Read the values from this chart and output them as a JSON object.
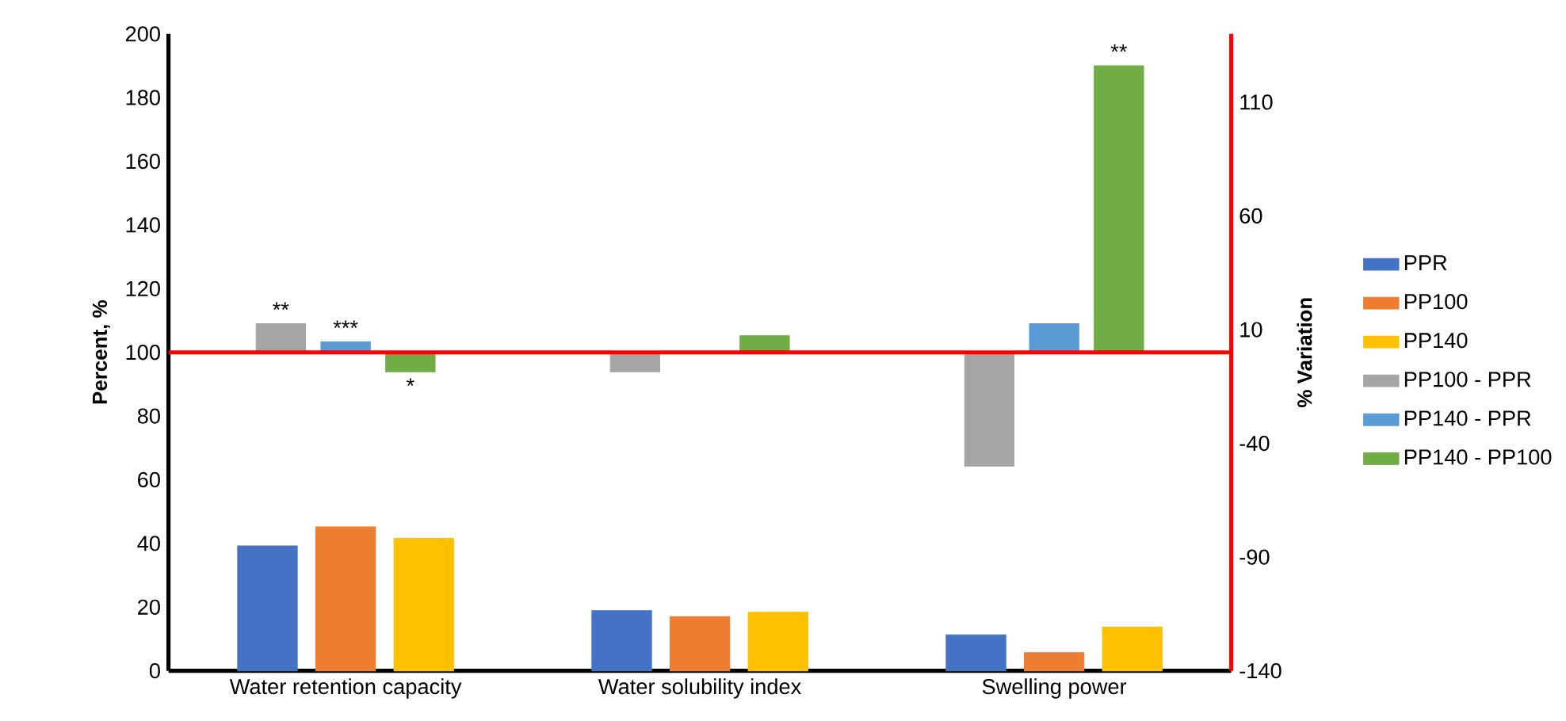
{
  "chart_data": {
    "type": "bar",
    "ylabel": "Percent, %",
    "y2label": "% Variation",
    "categories": [
      "Water retention capacity",
      "Water solubility index",
      "Swelling power"
    ],
    "series": [
      {
        "name": "PPR",
        "color": "#4472c4",
        "values": [
          39.2,
          18.9,
          11.3
        ]
      },
      {
        "name": "PP100",
        "color": "#ed7d31",
        "values": [
          45.2,
          17,
          5.7
        ]
      },
      {
        "name": "PP140",
        "color": "#ffc000",
        "values": [
          41.6,
          18.4,
          13.7
        ]
      },
      {
        "name": "PP100 - PPR",
        "color": "#a5a5a5",
        "axis": "y2",
        "values": [
          12.6,
          -8.5,
          -50
        ],
        "value_labels": [
          "**",
          null,
          null
        ]
      },
      {
        "name": "PP140 - PPR",
        "color": "#5b9bd5",
        "axis": "y2",
        "values": [
          4.6,
          null,
          12.6
        ],
        "value_labels": [
          "***",
          null,
          null
        ]
      },
      {
        "name": "PP140 - PP100",
        "color": "#70ad47",
        "axis": "y2",
        "values": [
          -8.5,
          7.3,
          126
        ],
        "value_labels": [
          "*",
          null,
          "**"
        ]
      }
    ],
    "ylim": [
      0,
      200
    ],
    "yticks": [
      0,
      20,
      40,
      60,
      80,
      100,
      120,
      140,
      160,
      180,
      200
    ],
    "y2lim": [
      -140,
      140
    ],
    "y2ticks": [
      -140,
      -90,
      -40,
      10,
      60,
      110
    ],
    "ref_lines": [
      {
        "axis": "y2",
        "value": 0,
        "color": "#ff0000"
      }
    ],
    "legend": "right"
  }
}
